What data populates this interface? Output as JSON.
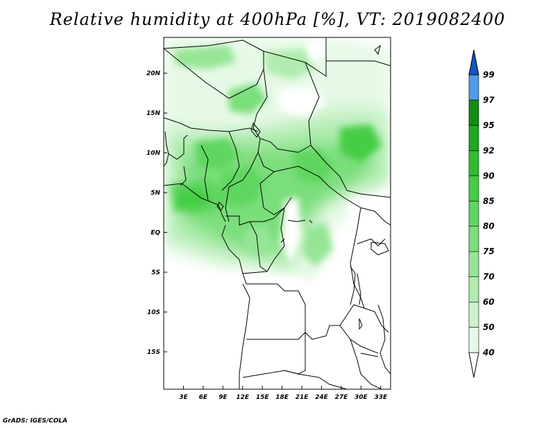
{
  "title": "Relative humidity at 400hPa [%], VT: 2019082400",
  "credit": "GrADS: IGES/COLA",
  "lon_ticks": [
    {
      "label": "3E",
      "lon": 3
    },
    {
      "label": "6E",
      "lon": 6
    },
    {
      "label": "9E",
      "lon": 9
    },
    {
      "label": "12E",
      "lon": 12
    },
    {
      "label": "15E",
      "lon": 15
    },
    {
      "label": "18E",
      "lon": 18
    },
    {
      "label": "21E",
      "lon": 21
    },
    {
      "label": "24E",
      "lon": 24
    },
    {
      "label": "27E",
      "lon": 27
    },
    {
      "label": "30E",
      "lon": 30
    },
    {
      "label": "33E",
      "lon": 33
    }
  ],
  "lat_ticks": [
    {
      "label": "20N",
      "lat": 20
    },
    {
      "label": "15N",
      "lat": 15
    },
    {
      "label": "10N",
      "lat": 10
    },
    {
      "label": "5N",
      "lat": 5
    },
    {
      "label": "EQ",
      "lat": 0
    },
    {
      "label": "5S",
      "lat": -5
    },
    {
      "label": "10S",
      "lat": -10
    },
    {
      "label": "15S",
      "lat": -15
    }
  ],
  "map_extent": {
    "lon_min": 0,
    "lon_max": 34.5,
    "lat_min": -19.7,
    "lat_max": 24.5
  },
  "colorbar": {
    "levels": [
      "40",
      "50",
      "60",
      "70",
      "75",
      "80",
      "85",
      "90",
      "92",
      "95",
      "97",
      "99"
    ],
    "colors": [
      "#e6f9e6",
      "#ccf2cc",
      "#b0ecb0",
      "#96e596",
      "#7ade7a",
      "#5fd65f",
      "#45cd45",
      "#2fbd2f",
      "#20a820",
      "#128e12",
      "#4e9de8",
      "#2a7adf",
      "#1656c8"
    ]
  },
  "icons": {
    "map": "regional-map",
    "colorbar": "humidity-colorbar"
  }
}
